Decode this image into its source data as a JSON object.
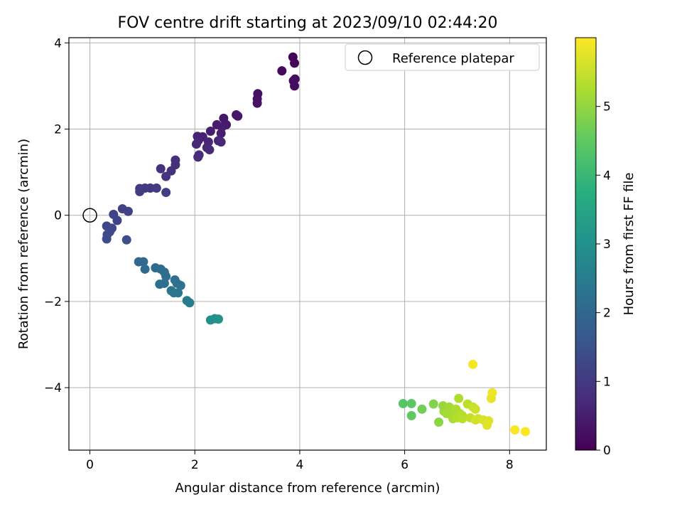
{
  "chart_data": {
    "type": "scatter",
    "title": "FOV centre drift starting at 2023/09/10 02:44:20",
    "xlabel": "Angular distance from reference (arcmin)",
    "ylabel": "Rotation from reference (arcmin)",
    "xlim": [
      -0.4,
      8.7
    ],
    "ylim": [
      -5.45,
      4.12
    ],
    "xticks": [
      0,
      2,
      4,
      6,
      8
    ],
    "xtick_labels": [
      "0",
      "2",
      "4",
      "6",
      "8"
    ],
    "yticks": [
      -4,
      -2,
      0,
      2,
      4
    ],
    "ytick_labels": [
      "−4",
      "−2",
      "0",
      "2",
      "4"
    ],
    "grid": true,
    "legend": {
      "placement": "top-right",
      "entries": [
        "Reference platepar"
      ]
    },
    "colorbar": {
      "label": "Hours from first FF file",
      "colormap": "viridis",
      "range": [
        0,
        6
      ],
      "ticks": [
        0,
        1,
        2,
        3,
        4,
        5
      ],
      "tick_labels": [
        "0",
        "1",
        "2",
        "3",
        "4",
        "5"
      ]
    },
    "reference_point": {
      "x": 0,
      "y": 0,
      "marker": "open-circle",
      "color": "#000000"
    },
    "series": [
      {
        "values": [
          {
            "x": 3.87,
            "y": 3.67,
            "h": 0.05
          },
          {
            "x": 3.9,
            "y": 3.53,
            "h": 0.08
          },
          {
            "x": 3.66,
            "y": 3.35,
            "h": 0.12
          },
          {
            "x": 3.88,
            "y": 3.12,
            "h": 0.15
          },
          {
            "x": 3.9,
            "y": 3.0,
            "h": 0.18
          },
          {
            "x": 3.91,
            "y": 3.16,
            "h": 0.2
          },
          {
            "x": 3.2,
            "y": 2.82,
            "h": 0.25
          },
          {
            "x": 3.19,
            "y": 2.7,
            "h": 0.28
          },
          {
            "x": 3.19,
            "y": 2.6,
            "h": 0.3
          },
          {
            "x": 2.79,
            "y": 2.33,
            "h": 0.35
          },
          {
            "x": 2.82,
            "y": 2.3,
            "h": 0.38
          },
          {
            "x": 2.55,
            "y": 2.25,
            "h": 0.4
          },
          {
            "x": 2.6,
            "y": 2.1,
            "h": 0.42
          },
          {
            "x": 2.42,
            "y": 2.1,
            "h": 0.45
          },
          {
            "x": 2.52,
            "y": 2.05,
            "h": 0.47
          },
          {
            "x": 2.3,
            "y": 1.95,
            "h": 0.5
          },
          {
            "x": 2.5,
            "y": 1.9,
            "h": 0.52
          },
          {
            "x": 2.05,
            "y": 1.83,
            "h": 0.55
          },
          {
            "x": 2.15,
            "y": 1.82,
            "h": 0.57
          },
          {
            "x": 2.07,
            "y": 1.74,
            "h": 0.6
          },
          {
            "x": 2.45,
            "y": 1.73,
            "h": 0.62
          },
          {
            "x": 2.26,
            "y": 1.7,
            "h": 0.64
          },
          {
            "x": 2.5,
            "y": 1.7,
            "h": 0.66
          },
          {
            "x": 2.03,
            "y": 1.65,
            "h": 0.68
          },
          {
            "x": 2.23,
            "y": 1.57,
            "h": 0.7
          },
          {
            "x": 2.28,
            "y": 1.52,
            "h": 0.72
          },
          {
            "x": 2.08,
            "y": 1.4,
            "h": 0.74
          },
          {
            "x": 2.06,
            "y": 1.35,
            "h": 0.76
          },
          {
            "x": 1.63,
            "y": 1.28,
            "h": 0.8
          },
          {
            "x": 1.63,
            "y": 1.17,
            "h": 0.82
          },
          {
            "x": 1.35,
            "y": 1.08,
            "h": 0.85
          },
          {
            "x": 1.55,
            "y": 1.03,
            "h": 0.87
          },
          {
            "x": 1.45,
            "y": 0.9,
            "h": 0.9
          },
          {
            "x": 0.95,
            "y": 0.62,
            "h": 1.0
          },
          {
            "x": 1.05,
            "y": 0.63,
            "h": 1.02
          },
          {
            "x": 1.15,
            "y": 0.63,
            "h": 1.04
          },
          {
            "x": 1.27,
            "y": 0.63,
            "h": 1.06
          },
          {
            "x": 0.95,
            "y": 0.55,
            "h": 1.08
          },
          {
            "x": 1.45,
            "y": 0.53,
            "h": 1.1
          },
          {
            "x": 0.62,
            "y": 0.15,
            "h": 1.15
          },
          {
            "x": 0.73,
            "y": 0.09,
            "h": 1.18
          },
          {
            "x": 0.45,
            "y": 0.02,
            "h": 1.2
          },
          {
            "x": 0.52,
            "y": -0.12,
            "h": 1.22
          },
          {
            "x": 0.32,
            "y": -0.25,
            "h": 1.25
          },
          {
            "x": 0.42,
            "y": -0.3,
            "h": 1.28
          },
          {
            "x": 0.38,
            "y": -0.38,
            "h": 1.3
          },
          {
            "x": 0.33,
            "y": -0.45,
            "h": 1.32
          },
          {
            "x": 0.32,
            "y": -0.55,
            "h": 1.35
          },
          {
            "x": 0.7,
            "y": -0.57,
            "h": 1.45
          },
          {
            "x": 0.93,
            "y": -1.08,
            "h": 2.0
          },
          {
            "x": 1.02,
            "y": -1.08,
            "h": 2.02
          },
          {
            "x": 1.05,
            "y": -1.25,
            "h": 2.05
          },
          {
            "x": 1.25,
            "y": -1.22,
            "h": 2.08
          },
          {
            "x": 1.35,
            "y": -1.25,
            "h": 2.1
          },
          {
            "x": 1.42,
            "y": -1.32,
            "h": 2.12
          },
          {
            "x": 1.45,
            "y": -1.42,
            "h": 2.15
          },
          {
            "x": 1.33,
            "y": -1.6,
            "h": 2.18
          },
          {
            "x": 1.42,
            "y": -1.58,
            "h": 2.2
          },
          {
            "x": 1.62,
            "y": -1.5,
            "h": 2.22
          },
          {
            "x": 1.66,
            "y": -1.58,
            "h": 2.25
          },
          {
            "x": 1.73,
            "y": -1.63,
            "h": 2.27
          },
          {
            "x": 1.55,
            "y": -1.75,
            "h": 2.3
          },
          {
            "x": 1.6,
            "y": -1.8,
            "h": 2.32
          },
          {
            "x": 1.68,
            "y": -1.8,
            "h": 2.35
          },
          {
            "x": 1.85,
            "y": -1.98,
            "h": 2.45
          },
          {
            "x": 1.9,
            "y": -2.03,
            "h": 2.5
          },
          {
            "x": 2.3,
            "y": -2.43,
            "h": 3.0
          },
          {
            "x": 2.38,
            "y": -2.4,
            "h": 3.02
          },
          {
            "x": 2.45,
            "y": -2.41,
            "h": 3.05
          },
          {
            "x": 5.97,
            "y": -4.37,
            "h": 4.4
          },
          {
            "x": 6.13,
            "y": -4.37,
            "h": 4.45
          },
          {
            "x": 6.13,
            "y": -4.65,
            "h": 4.5
          },
          {
            "x": 6.33,
            "y": -4.5,
            "h": 4.7
          },
          {
            "x": 6.55,
            "y": -4.38,
            "h": 4.85
          },
          {
            "x": 6.65,
            "y": -4.8,
            "h": 4.95
          },
          {
            "x": 6.73,
            "y": -4.42,
            "h": 5.05
          },
          {
            "x": 6.75,
            "y": -4.55,
            "h": 5.1
          },
          {
            "x": 6.85,
            "y": -4.45,
            "h": 5.15
          },
          {
            "x": 6.8,
            "y": -4.6,
            "h": 5.18
          },
          {
            "x": 6.9,
            "y": -4.65,
            "h": 5.2
          },
          {
            "x": 6.92,
            "y": -4.72,
            "h": 5.22
          },
          {
            "x": 6.98,
            "y": -4.5,
            "h": 5.25
          },
          {
            "x": 7.03,
            "y": -4.25,
            "h": 5.28
          },
          {
            "x": 7.05,
            "y": -4.6,
            "h": 5.3
          },
          {
            "x": 7.0,
            "y": -4.7,
            "h": 5.32
          },
          {
            "x": 7.1,
            "y": -4.65,
            "h": 5.35
          },
          {
            "x": 7.1,
            "y": -4.72,
            "h": 5.38
          },
          {
            "x": 7.2,
            "y": -4.38,
            "h": 5.4
          },
          {
            "x": 7.25,
            "y": -4.7,
            "h": 5.45
          },
          {
            "x": 7.3,
            "y": -4.45,
            "h": 5.5
          },
          {
            "x": 7.35,
            "y": -4.5,
            "h": 5.55
          },
          {
            "x": 7.4,
            "y": -4.72,
            "h": 5.58
          },
          {
            "x": 7.35,
            "y": -4.75,
            "h": 5.6
          },
          {
            "x": 7.5,
            "y": -4.75,
            "h": 5.65
          },
          {
            "x": 7.57,
            "y": -4.87,
            "h": 5.7
          },
          {
            "x": 7.6,
            "y": -4.77,
            "h": 5.72
          },
          {
            "x": 7.65,
            "y": -4.25,
            "h": 5.8
          },
          {
            "x": 7.67,
            "y": -4.12,
            "h": 5.85
          },
          {
            "x": 7.3,
            "y": -3.46,
            "h": 5.9
          },
          {
            "x": 8.1,
            "y": -4.98,
            "h": 5.95
          },
          {
            "x": 8.3,
            "y": -5.02,
            "h": 6.0
          }
        ]
      }
    ]
  }
}
